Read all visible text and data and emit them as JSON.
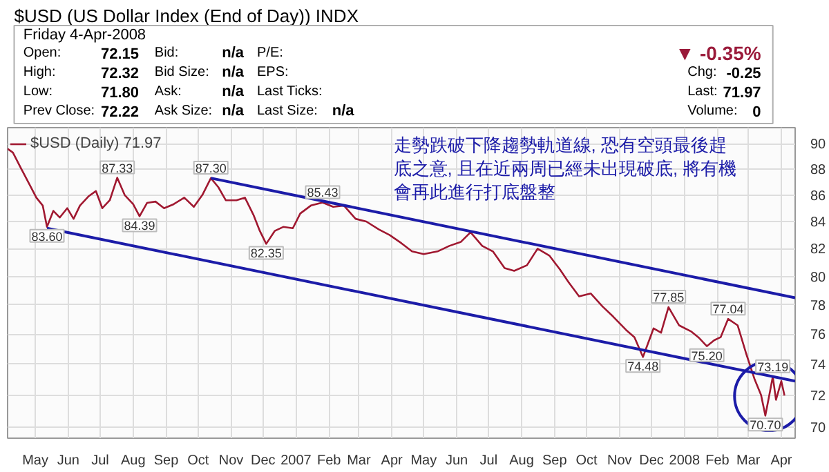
{
  "chart_data": {
    "type": "line",
    "title": "$USD (US Dollar Index (End of Day)) INDX",
    "subtitle": "Friday 4-Apr-2008",
    "log": true,
    "grid": true,
    "legend": "top left",
    "xlim": [
      "2006-04-05",
      "2008-04-14"
    ],
    "ylim": [
      69.3,
      91.3
    ],
    "yticks": [
      70,
      72,
      74,
      76,
      78,
      80,
      82,
      84,
      86,
      88,
      90
    ],
    "xticks": [
      {
        "value": "2006-05-01",
        "label": "May"
      },
      {
        "value": "2006-06-01",
        "label": "Jun"
      },
      {
        "value": "2006-07-01",
        "label": "Jul"
      },
      {
        "value": "2006-08-01",
        "label": "Aug"
      },
      {
        "value": "2006-09-01",
        "label": "Sep"
      },
      {
        "value": "2006-10-01",
        "label": "Oct"
      },
      {
        "value": "2006-11-01",
        "label": "Nov"
      },
      {
        "value": "2006-12-01",
        "label": "Dec"
      },
      {
        "value": "2007-01-01",
        "label": "2007"
      },
      {
        "value": "2007-02-01",
        "label": "Feb"
      },
      {
        "value": "2007-03-01",
        "label": "Mar"
      },
      {
        "value": "2007-04-01",
        "label": "Apr"
      },
      {
        "value": "2007-05-01",
        "label": "May"
      },
      {
        "value": "2007-06-01",
        "label": "Jun"
      },
      {
        "value": "2007-07-01",
        "label": "Jul"
      },
      {
        "value": "2007-08-01",
        "label": "Aug"
      },
      {
        "value": "2007-09-01",
        "label": "Sep"
      },
      {
        "value": "2007-10-01",
        "label": "Oct"
      },
      {
        "value": "2007-11-01",
        "label": "Nov"
      },
      {
        "value": "2007-12-01",
        "label": "Dec"
      },
      {
        "value": "2008-01-01",
        "label": "2008"
      },
      {
        "value": "2008-02-01",
        "label": "Feb"
      },
      {
        "value": "2008-03-01",
        "label": "Mar"
      },
      {
        "value": "2008-04-01",
        "label": "Apr"
      }
    ],
    "series": [
      {
        "name": "$USD (Daily) 71.97",
        "color": "#a01830",
        "x": [
          "2006-04-05",
          "2006-04-10",
          "2006-04-18",
          "2006-04-25",
          "2006-05-02",
          "2006-05-08",
          "2006-05-12",
          "2006-05-18",
          "2006-05-24",
          "2006-05-31",
          "2006-06-06",
          "2006-06-12",
          "2006-06-20",
          "2006-06-27",
          "2006-07-03",
          "2006-07-10",
          "2006-07-17",
          "2006-07-24",
          "2006-08-01",
          "2006-08-07",
          "2006-08-14",
          "2006-08-22",
          "2006-08-30",
          "2006-09-08",
          "2006-09-18",
          "2006-09-27",
          "2006-10-05",
          "2006-10-13",
          "2006-10-20",
          "2006-10-27",
          "2006-11-06",
          "2006-11-14",
          "2006-11-22",
          "2006-11-28",
          "2006-12-04",
          "2006-12-12",
          "2006-12-20",
          "2006-12-29",
          "2007-01-05",
          "2007-01-15",
          "2007-01-26",
          "2007-02-05",
          "2007-02-15",
          "2007-02-26",
          "2007-03-08",
          "2007-03-20",
          "2007-03-30",
          "2007-04-10",
          "2007-04-20",
          "2007-05-01",
          "2007-05-14",
          "2007-05-25",
          "2007-06-05",
          "2007-06-14",
          "2007-06-25",
          "2007-07-05",
          "2007-07-16",
          "2007-07-25",
          "2007-08-06",
          "2007-08-16",
          "2007-08-27",
          "2007-09-06",
          "2007-09-14",
          "2007-09-24",
          "2007-10-05",
          "2007-10-16",
          "2007-10-26",
          "2007-11-07",
          "2007-11-15",
          "2007-11-23",
          "2007-12-03",
          "2007-12-10",
          "2007-12-17",
          "2007-12-27",
          "2008-01-07",
          "2008-01-14",
          "2008-01-22",
          "2008-01-29",
          "2008-02-04",
          "2008-02-11",
          "2008-02-20",
          "2008-02-28",
          "2008-03-07",
          "2008-03-13",
          "2008-03-17",
          "2008-03-21",
          "2008-03-24",
          "2008-03-27",
          "2008-04-01",
          "2008-04-04"
        ],
        "values": [
          89.6,
          89.3,
          88.0,
          86.9,
          85.8,
          85.2,
          83.6,
          84.8,
          84.3,
          85.0,
          84.2,
          85.2,
          85.9,
          86.3,
          85.0,
          85.6,
          87.33,
          86.0,
          85.3,
          84.39,
          85.4,
          85.5,
          85.0,
          85.3,
          85.8,
          85.1,
          86.0,
          87.3,
          86.6,
          85.6,
          85.6,
          85.8,
          84.5,
          83.3,
          82.35,
          83.3,
          83.6,
          83.5,
          84.6,
          85.2,
          85.43,
          85.1,
          85.2,
          84.2,
          84.0,
          83.4,
          83.0,
          82.4,
          81.8,
          81.6,
          81.8,
          82.2,
          82.5,
          83.2,
          82.2,
          81.8,
          80.6,
          80.4,
          80.8,
          82.0,
          81.5,
          80.5,
          79.6,
          78.6,
          78.8,
          77.9,
          77.2,
          76.3,
          75.8,
          74.48,
          76.4,
          76.1,
          77.85,
          76.6,
          76.2,
          75.8,
          75.2,
          75.6,
          75.8,
          77.04,
          76.6,
          74.7,
          73.0,
          72.0,
          70.7,
          72.1,
          73.19,
          71.7,
          72.9,
          71.97
        ]
      },
      {
        "type": "line",
        "color": "#1c1ca8",
        "x": [
          "2006-10-13",
          "2008-04-14"
        ],
        "values": [
          87.3,
          78.5
        ]
      },
      {
        "type": "line",
        "color": "#1c1ca8",
        "x": [
          "2006-05-12",
          "2008-04-14"
        ],
        "values": [
          83.5,
          72.9
        ]
      }
    ],
    "annotations": [
      "Open: 72.15",
      "High: 72.32",
      "Low: 71.80",
      "Prev Close: 72.22",
      "Bid: n/a",
      "Bid Size: n/a",
      "Ask: n/a",
      "Ask Size: n/a",
      "P/E:",
      "EPS:",
      "Last Ticks:",
      "Last Size: n/a",
      "▼ -0.35%",
      "Chg: -0.25",
      "Last: 71.97",
      "Volume: 0",
      "走勢跌破下降趨勢軌道線, 恐有空頭最後趕",
      "底之意, 且在近兩周已經未出現破底, 將有機",
      "會再此進行打底盤整",
      {
        "text": "87.33",
        "x": "2006-07-17",
        "y": 87.33
      },
      {
        "text": "84.39",
        "x": "2006-08-07",
        "y": 84.39
      },
      {
        "text": "83.60",
        "x": "2006-05-12",
        "y": 83.6
      },
      {
        "text": "87.30",
        "x": "2006-10-13",
        "y": 87.3
      },
      {
        "text": "82.35",
        "x": "2006-12-04",
        "y": 82.35
      },
      {
        "text": "85.43",
        "x": "2007-01-26",
        "y": 85.43
      },
      {
        "text": "74.48",
        "x": "2007-11-23",
        "y": 74.48
      },
      {
        "text": "77.85",
        "x": "2007-12-17",
        "y": 77.85
      },
      {
        "text": "75.20",
        "x": "2008-01-22",
        "y": 75.2
      },
      {
        "text": "77.04",
        "x": "2008-02-11",
        "y": 77.04
      },
      {
        "text": "73.19",
        "x": "2008-03-24",
        "y": 73.19
      },
      {
        "text": "70.70",
        "x": "2008-03-17",
        "y": 70.7
      }
    ]
  }
}
